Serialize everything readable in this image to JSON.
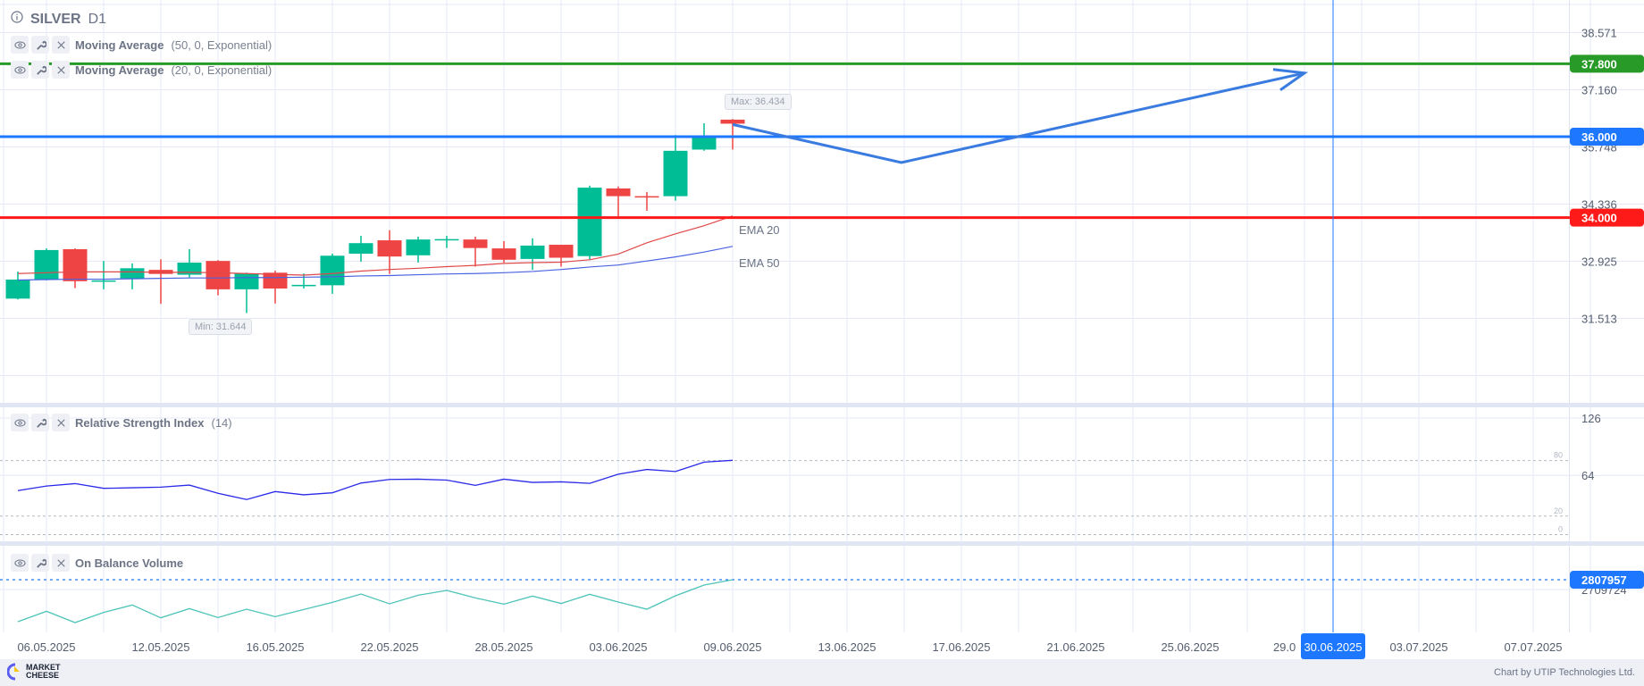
{
  "header": {
    "symbol": "SILVER",
    "timeframe": "D1"
  },
  "indicators": [
    {
      "name": "Moving Average",
      "params": "(50, 0, Exponential)"
    },
    {
      "name": "Moving Average",
      "params": "(20, 0, Exponential)"
    },
    {
      "name": "Relative Strength Index",
      "params": "(14)"
    },
    {
      "name": "On Balance Volume",
      "params": ""
    }
  ],
  "icons": [
    "info-icon",
    "eye-icon",
    "wrench-icon",
    "close-icon"
  ],
  "colors": {
    "bull": "#00bd96",
    "bear": "#ef4444",
    "ema20": "#e04848",
    "ema50": "#4a63e0",
    "rsi": "#2a2ae8",
    "obv": "#4fc4b8",
    "grid": "#e3e8f5",
    "accent": "#1e78ff"
  },
  "chart_data": {
    "type": "candlestick",
    "title": "SILVER D1",
    "price_axis_ticks": [
      "38.571",
      "37.160",
      "35.748",
      "34.336",
      "32.925",
      "31.513"
    ],
    "price_axis_values": [
      38.571,
      37.16,
      35.748,
      34.336,
      32.925,
      31.513
    ],
    "date_axis_labels": [
      {
        "label": "06.05.2025",
        "bar": 1
      },
      {
        "label": "12.05.2025",
        "bar": 5
      },
      {
        "label": "16.05.2025",
        "bar": 9
      },
      {
        "label": "22.05.2025",
        "bar": 13
      },
      {
        "label": "28.05.2025",
        "bar": 17
      },
      {
        "label": "03.06.2025",
        "bar": 21
      },
      {
        "label": "09.06.2025",
        "bar": 25
      },
      {
        "label": "13.06.2025",
        "bar": 29
      },
      {
        "label": "17.06.2025",
        "bar": 33
      },
      {
        "label": "21.06.2025",
        "bar": 37
      },
      {
        "label": "25.06.2025",
        "bar": 41
      },
      {
        "label": "29.0",
        "bar": 44.3
      },
      {
        "label": "03.07.2025",
        "bar": 49
      },
      {
        "label": "07.07.2025",
        "bar": 53
      }
    ],
    "candles": [
      {
        "date": "05.05.2025",
        "o": 32.0,
        "h": 32.67,
        "l": 31.98,
        "c": 32.47
      },
      {
        "date": "06.05.2025",
        "o": 32.48,
        "h": 33.24,
        "l": 32.45,
        "c": 33.2
      },
      {
        "date": "07.05.2025",
        "o": 33.22,
        "h": 33.24,
        "l": 32.26,
        "c": 32.43
      },
      {
        "date": "08.05.2025",
        "o": 32.43,
        "h": 32.93,
        "l": 32.23,
        "c": 32.45
      },
      {
        "date": "09.05.2025",
        "o": 32.5,
        "h": 32.87,
        "l": 32.23,
        "c": 32.75
      },
      {
        "date": "12.05.2025",
        "o": 32.71,
        "h": 32.97,
        "l": 31.87,
        "c": 32.61
      },
      {
        "date": "13.05.2025",
        "o": 32.59,
        "h": 33.22,
        "l": 32.52,
        "c": 32.89
      },
      {
        "date": "14.05.2025",
        "o": 32.93,
        "h": 32.95,
        "l": 32.08,
        "c": 32.23
      },
      {
        "date": "15.05.2025",
        "o": 32.23,
        "h": 32.64,
        "l": 31.644,
        "c": 32.62
      },
      {
        "date": "16.05.2025",
        "o": 32.64,
        "h": 32.69,
        "l": 31.88,
        "c": 32.25
      },
      {
        "date": "19.05.2025",
        "o": 32.32,
        "h": 32.62,
        "l": 32.25,
        "c": 32.34
      },
      {
        "date": "20.05.2025",
        "o": 32.33,
        "h": 33.11,
        "l": 32.12,
        "c": 33.06
      },
      {
        "date": "21.05.2025",
        "o": 33.11,
        "h": 33.55,
        "l": 32.91,
        "c": 33.37
      },
      {
        "date": "22.05.2025",
        "o": 33.44,
        "h": 33.69,
        "l": 32.61,
        "c": 33.04
      },
      {
        "date": "23.05.2025",
        "o": 33.07,
        "h": 33.53,
        "l": 32.89,
        "c": 33.46
      },
      {
        "date": "26.05.2025",
        "o": 33.45,
        "h": 33.55,
        "l": 33.25,
        "c": 33.47
      },
      {
        "date": "27.05.2025",
        "o": 33.46,
        "h": 33.53,
        "l": 32.79,
        "c": 33.25
      },
      {
        "date": "28.05.2025",
        "o": 33.24,
        "h": 33.42,
        "l": 32.89,
        "c": 32.96
      },
      {
        "date": "29.05.2025",
        "o": 32.98,
        "h": 33.49,
        "l": 32.71,
        "c": 33.31
      },
      {
        "date": "30.05.2025",
        "o": 33.33,
        "h": 33.33,
        "l": 32.79,
        "c": 33.01
      },
      {
        "date": "02.06.2025",
        "o": 33.05,
        "h": 34.79,
        "l": 32.96,
        "c": 34.74
      },
      {
        "date": "03.06.2025",
        "o": 34.72,
        "h": 34.77,
        "l": 34.02,
        "c": 34.53
      },
      {
        "date": "04.06.2025",
        "o": 34.53,
        "h": 34.63,
        "l": 34.17,
        "c": 34.51
      },
      {
        "date": "05.06.2025",
        "o": 34.53,
        "h": 36.04,
        "l": 34.42,
        "c": 35.65
      },
      {
        "date": "06.06.2025",
        "o": 35.68,
        "h": 36.33,
        "l": 35.65,
        "c": 35.99
      },
      {
        "date": "09.06.2025",
        "o": 36.42,
        "h": 36.434,
        "l": 35.68,
        "c": 36.32
      }
    ],
    "ema20": [
      32.62,
      32.64,
      32.66,
      32.66,
      32.66,
      32.65,
      32.65,
      32.64,
      32.62,
      32.6,
      32.58,
      32.62,
      32.68,
      32.72,
      32.75,
      32.79,
      32.82,
      32.87,
      32.89,
      32.9,
      32.96,
      33.1,
      33.38,
      33.6,
      33.8,
      34.04
    ],
    "ema50": [
      32.46,
      32.47,
      32.48,
      32.48,
      32.49,
      32.5,
      32.51,
      32.51,
      32.52,
      32.52,
      32.53,
      32.54,
      32.56,
      32.57,
      32.59,
      32.61,
      32.62,
      32.64,
      32.67,
      32.72,
      32.78,
      32.83,
      32.93,
      33.03,
      33.15,
      33.29
    ],
    "ema_labels": [
      "EMA 20",
      "EMA 50"
    ],
    "min_label": "Min: 31.644",
    "max_label": "Max: 36.434",
    "horizontal_levels": [
      {
        "price": 37.8,
        "label": "37.800",
        "color": "#279a27"
      },
      {
        "price": 36.0,
        "label": "36.000",
        "color": "#1e78ff"
      },
      {
        "price": 34.0,
        "label": "34.000",
        "color": "#ff1a1a"
      }
    ],
    "arrow": [
      {
        "bar": 25,
        "price": 36.3
      },
      {
        "bar": 30.9,
        "price": 35.36
      },
      {
        "bar": 45,
        "price": 37.57
      }
    ],
    "vertical_marker": {
      "bar": 46,
      "label": "30.06.2025"
    },
    "rsi": {
      "ticks": [
        "126",
        "64"
      ],
      "tick_values": [
        126,
        64
      ],
      "levels": [
        {
          "v": 80,
          "label": "80"
        },
        {
          "v": 20,
          "label": "20"
        },
        {
          "v": 0,
          "label": "0"
        }
      ],
      "values": [
        47.5,
        52.5,
        55.1,
        50.0,
        50.6,
        51.3,
        53.5,
        44.6,
        37.9,
        46.5,
        43.0,
        45.2,
        55.7,
        59.6,
        59.9,
        58.9,
        53.2,
        59.9,
        56.4,
        57.0,
        55.4,
        65.3,
        70.4,
        68.2,
        78.3,
        80.3
      ]
    },
    "obv": {
      "last_label": "2807957",
      "tick_label": "2709724",
      "tick_value": 2709724,
      "values": [
        2388200,
        2492395,
        2379269,
        2480487,
        2554912,
        2426901,
        2519188,
        2429878,
        2513234,
        2438809,
        2510257,
        2581705,
        2665061,
        2566820,
        2653153,
        2700785,
        2626360,
        2563843,
        2644222,
        2569797,
        2662084,
        2584682,
        2513234,
        2647199,
        2754371,
        2807957
      ]
    }
  },
  "footer": {
    "logo_line1": "MARKET",
    "logo_line2": "CHEESE",
    "credit": "Chart by UTIP Technologies Ltd."
  }
}
